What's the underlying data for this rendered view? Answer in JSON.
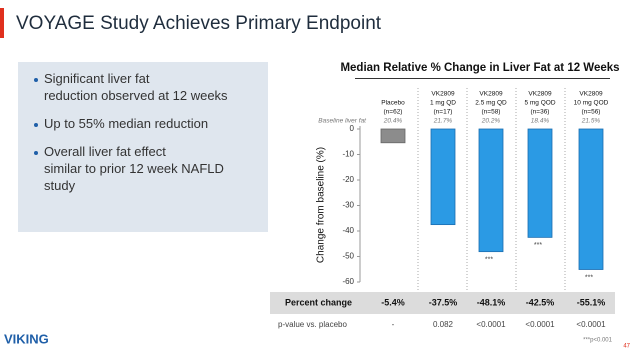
{
  "slide": {
    "title": "VOYAGE Study Achieves Primary Endpoint",
    "bullets": [
      "Significant liver fat reduction observed at 12 weeks",
      "Up to 55% median reduction",
      "Overall liver fat effect similar to prior 12 week NAFLD study"
    ],
    "logo": "VIKING",
    "page_number": "47"
  },
  "chart_data": {
    "type": "bar",
    "title": "Median Relative % Change in Liver Fat at 12 Weeks",
    "y_label": "Change from baseline (%)",
    "categories": [
      [
        "Placebo",
        "(n=62)"
      ],
      [
        "VK2809",
        "1 mg QD",
        "(n=17)"
      ],
      [
        "VK2809",
        "2.5 mg QD",
        "(n=58)"
      ],
      [
        "VK2809",
        "5 mg QOD",
        "(n=36)"
      ],
      [
        "VK2809",
        "10 mg QOD",
        "(n=56)"
      ]
    ],
    "baseline_label": "Baseline liver fat",
    "baseline": [
      "20.4%",
      "21.7%",
      "20.2%",
      "18.4%",
      "21.5%"
    ],
    "series": [
      {
        "name": "Percent change",
        "values": [
          -5.4,
          -37.5,
          -48.1,
          -42.5,
          -55.1
        ],
        "value_labels": [
          "-5.4%",
          "-37.5%",
          "-48.1%",
          "-42.5%",
          "-55.1%"
        ],
        "colors": [
          "#8c8c8c",
          "#2b9ae4",
          "#2b9ae4",
          "#2b9ae4",
          "#2b9ae4"
        ]
      }
    ],
    "significance": [
      null,
      null,
      "***",
      "***",
      "***"
    ],
    "pvalue_label": "p-value vs. placebo",
    "pvalues": [
      "-",
      "0.082",
      "<0.0001",
      "<0.0001",
      "<0.0001"
    ],
    "footnote": "***p<0.001",
    "ylim": [
      -60,
      0
    ],
    "yticks": [
      0,
      -10,
      -20,
      -30,
      -40,
      -50,
      -60
    ]
  }
}
